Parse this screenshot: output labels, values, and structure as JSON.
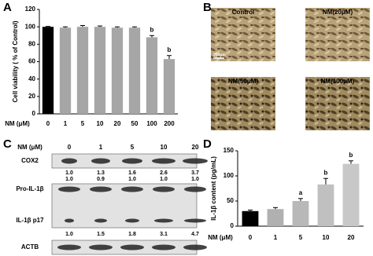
{
  "panels": [
    "A",
    "B",
    "C",
    "D"
  ],
  "chart_data": [
    {
      "type": "bar",
      "ylabel": "Cell viability ( % of Control)",
      "xlabel": "NM (μM)",
      "categories": [
        "0",
        "1",
        "5",
        "10",
        "20",
        "50",
        "100",
        "200"
      ],
      "values": [
        100,
        99,
        100,
        100,
        99,
        99,
        88,
        63
      ],
      "errors": [
        0.5,
        1,
        1.5,
        1,
        1,
        1,
        2,
        4
      ],
      "colors": [
        "#000000",
        "#a6a6a6",
        "#a6a6a6",
        "#a6a6a6",
        "#a6a6a6",
        "#a6a6a6",
        "#a6a6a6",
        "#a6a6a6"
      ],
      "annotations": [
        {
          "index": 6,
          "text": "b"
        },
        {
          "index": 7,
          "text": "b"
        }
      ],
      "ylim": [
        0,
        120
      ],
      "yticks": [
        0,
        20,
        40,
        60,
        80,
        100,
        120
      ]
    },
    {
      "type": "bar",
      "ylabel": "IL-1β content (pg/mL)",
      "xlabel": "NM (μM)",
      "categories": [
        "0",
        "1",
        "5",
        "10",
        "20"
      ],
      "values": [
        30,
        34,
        50,
        83,
        124
      ],
      "errors": [
        2,
        3,
        5,
        12,
        6
      ],
      "colors": [
        "#000000",
        "#b0b0b0",
        "#b8b8b8",
        "#c0c0c0",
        "#c8c8c8"
      ],
      "annotations": [
        {
          "index": 2,
          "text": "a"
        },
        {
          "index": 3,
          "text": "b"
        },
        {
          "index": 4,
          "text": "b"
        }
      ],
      "ylim": [
        0,
        150
      ],
      "yticks": [
        0,
        50,
        100,
        150
      ]
    }
  ],
  "images": {
    "labels": [
      "Control",
      "NM(20μM)",
      "NM(50μM)",
      "NM(100μM)"
    ],
    "scale_bar": "200μm"
  },
  "blot": {
    "header": "NM (μM)",
    "lanes": [
      "0",
      "1",
      "5",
      "10",
      "20"
    ],
    "rows": [
      {
        "label": "COX2",
        "ratios": [
          [
            "1.0",
            "1.3",
            "1.6",
            "2.6",
            "3.7"
          ],
          [
            "1.0",
            "0.9",
            "1.0",
            "1.0",
            "1.0"
          ]
        ]
      },
      {
        "label": "Pro-IL-1β"
      },
      {
        "label": "IL-1β p17",
        "ratios": [
          [
            "1.0",
            "1.5",
            "1.8",
            "3.1",
            "4.7"
          ]
        ]
      },
      {
        "label": "ACTB"
      }
    ]
  }
}
